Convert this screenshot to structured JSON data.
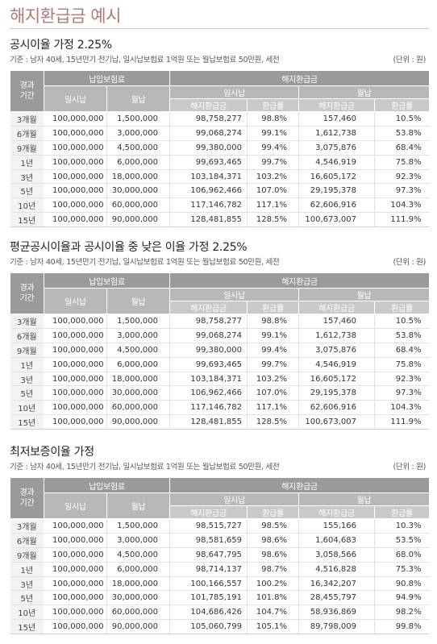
{
  "page_title": "해지환급금 예시",
  "table_headers": {
    "period": "경과\n기간",
    "paid_group": "납입보험료",
    "lump": "일시납",
    "monthly": "월납",
    "refund_group": "해지환급금",
    "refund_lump": "일시납",
    "refund_monthly": "월납",
    "refund_amount": "해지환급금",
    "refund_rate": "환급률"
  },
  "sections": [
    {
      "title": "공시이율 가정 2.25%",
      "meta": "기준 : 남자 40세, 15년만기 전기납, 일시납보험료 1억원 또는 월납보험료 50만원, 세전",
      "unit": "(단위 : 원)",
      "rows": [
        [
          "3개월",
          "100,000,000",
          "1,500,000",
          "98,758,277",
          "98.8%",
          "157,460",
          "10.5%"
        ],
        [
          "6개월",
          "100,000,000",
          "3,000,000",
          "99,068,274",
          "99.1%",
          "1,612,738",
          "53.8%"
        ],
        [
          "9개월",
          "100,000,000",
          "4,500,000",
          "99,380,000",
          "99.4%",
          "3,075,876",
          "68.4%"
        ],
        [
          "1년",
          "100,000,000",
          "6,000,000",
          "99,693,465",
          "99.7%",
          "4,546,919",
          "75.8%"
        ],
        [
          "3년",
          "100,000,000",
          "18,000,000",
          "103,184,371",
          "103.2%",
          "16,605,172",
          "92.3%"
        ],
        [
          "5년",
          "100,000,000",
          "30,000,000",
          "106,962,466",
          "107.0%",
          "29,195,378",
          "97.3%"
        ],
        [
          "10년",
          "100,000,000",
          "60,000,000",
          "117,146,782",
          "117.1%",
          "62,606,916",
          "104.3%"
        ],
        [
          "15년",
          "100,000,000",
          "90,000,000",
          "128,481,855",
          "128.5%",
          "100,673,007",
          "111.9%"
        ]
      ]
    },
    {
      "title": "평균공시이율과 공시이율 중 낮은 이율 가정 2.25%",
      "meta": "기준 : 남자 40세, 15년만기 전기납, 일시납보험료 1억원 또는 월납보험료 50만원, 세전",
      "unit": "(단위 : 원)",
      "rows": [
        [
          "3개월",
          "100,000,000",
          "1,500,000",
          "98,758,277",
          "98.8%",
          "157,460",
          "10.5%"
        ],
        [
          "6개월",
          "100,000,000",
          "3,000,000",
          "99,068,274",
          "99.1%",
          "1,612,738",
          "53.8%"
        ],
        [
          "9개월",
          "100,000,000",
          "4,500,000",
          "99,380,000",
          "99.4%",
          "3,075,876",
          "68.4%"
        ],
        [
          "1년",
          "100,000,000",
          "6,000,000",
          "99,693,465",
          "99.7%",
          "4,546,919",
          "75.8%"
        ],
        [
          "3년",
          "100,000,000",
          "18,000,000",
          "103,184,371",
          "103.2%",
          "16,605,172",
          "92.3%"
        ],
        [
          "5년",
          "100,000,000",
          "30,000,000",
          "106,962,466",
          "107.0%",
          "29,195,378",
          "97.3%"
        ],
        [
          "10년",
          "100,000,000",
          "60,000,000",
          "117,146,782",
          "117.1%",
          "62,606,916",
          "104.3%"
        ],
        [
          "15년",
          "100,000,000",
          "90,000,000",
          "128,481,855",
          "128.5%",
          "100,673,007",
          "111.9%"
        ]
      ]
    },
    {
      "title": "최저보증이율 가정",
      "meta": "기준 : 남자 40세, 15년만기 전기납, 일시납보험료 1억원 또는 월납보험료 50만원, 세전",
      "unit": "(단위 : 원)",
      "rows": [
        [
          "3개월",
          "100,000,000",
          "1,500,000",
          "98,515,727",
          "98.5%",
          "155,166",
          "10.3%"
        ],
        [
          "6개월",
          "100,000,000",
          "3,000,000",
          "98,581,659",
          "98.6%",
          "1,604,683",
          "53.5%"
        ],
        [
          "9개월",
          "100,000,000",
          "4,500,000",
          "98,647,795",
          "98.6%",
          "3,058,566",
          "68.0%"
        ],
        [
          "1년",
          "100,000,000",
          "6,000,000",
          "98,714,137",
          "98.7%",
          "4,516,828",
          "75.3%"
        ],
        [
          "3년",
          "100,000,000",
          "18,000,000",
          "100,166,557",
          "100.2%",
          "16,342,207",
          "90.8%"
        ],
        [
          "5년",
          "100,000,000",
          "30,000,000",
          "101,785,191",
          "101.8%",
          "28,455,797",
          "94.9%"
        ],
        [
          "10년",
          "100,000,000",
          "60,000,000",
          "104,686,426",
          "104.7%",
          "58,936,869",
          "98.2%"
        ],
        [
          "15년",
          "100,000,000",
          "90,000,000",
          "105,060,799",
          "105.1%",
          "89,798,009",
          "99.8%"
        ]
      ]
    }
  ]
}
